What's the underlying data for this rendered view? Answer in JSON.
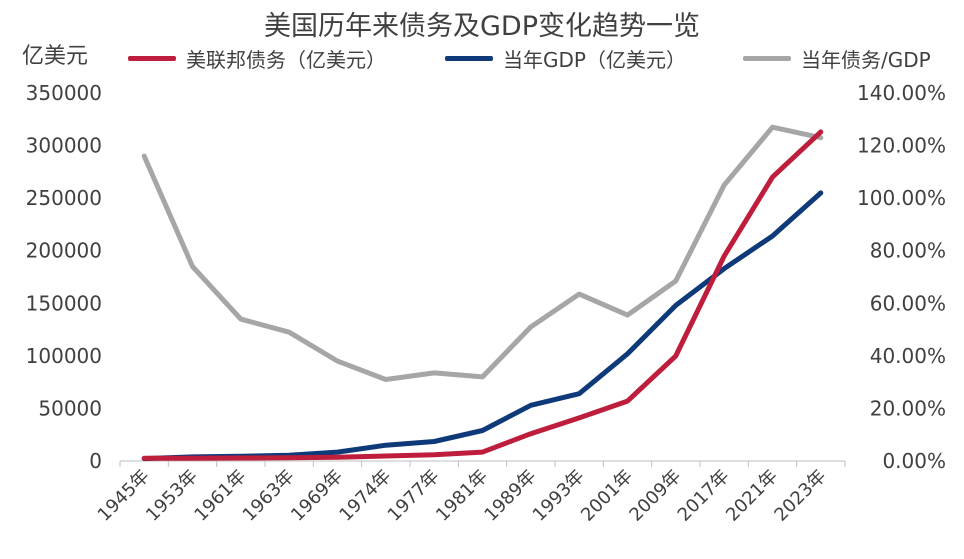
{
  "chart_data": {
    "type": "line",
    "title": "美国历年来债务及GDP变化趋势一览",
    "ylabel": "亿美元",
    "categories": [
      "1945年",
      "1953年",
      "1961年",
      "1963年",
      "1969年",
      "1974年",
      "1977年",
      "1981年",
      "1989年",
      "1993年",
      "2001年",
      "2009年",
      "2017年",
      "2021年",
      "2023年"
    ],
    "ylim": [
      0,
      350000
    ],
    "yticks": [
      "350000",
      "300000",
      "250000",
      "200000",
      "150000",
      "100000",
      "50000",
      "0"
    ],
    "y2lim": [
      0,
      1.4
    ],
    "y2ticks": [
      "140.00%",
      "120.00%",
      "100.00%",
      "80.00%",
      "60.00%",
      "40.00%",
      "20.00%",
      "0.00%"
    ],
    "series": [
      {
        "name": "美联邦债务（亿美元）",
        "axis": "left",
        "color": "#be1e3c",
        "values": [
          2600,
          2700,
          2900,
          3000,
          3600,
          4800,
          6000,
          8500,
          26000,
          41000,
          57000,
          100000,
          195000,
          270000,
          313000
        ]
      },
      {
        "name": "当年GDP（亿美元）",
        "axis": "left",
        "color": "#0f3a7a",
        "values": [
          2300,
          3900,
          4500,
          5500,
          8500,
          15000,
          18500,
          29000,
          53000,
          64000,
          102000,
          148000,
          183000,
          214000,
          255000
        ]
      },
      {
        "name": "当年债务/GDP",
        "axis": "right",
        "color": "#a6a6a6",
        "values": [
          1.16,
          0.74,
          0.54,
          0.49,
          0.38,
          0.31,
          0.335,
          0.32,
          0.51,
          0.635,
          0.555,
          0.685,
          1.05,
          1.27,
          1.23
        ]
      }
    ]
  }
}
